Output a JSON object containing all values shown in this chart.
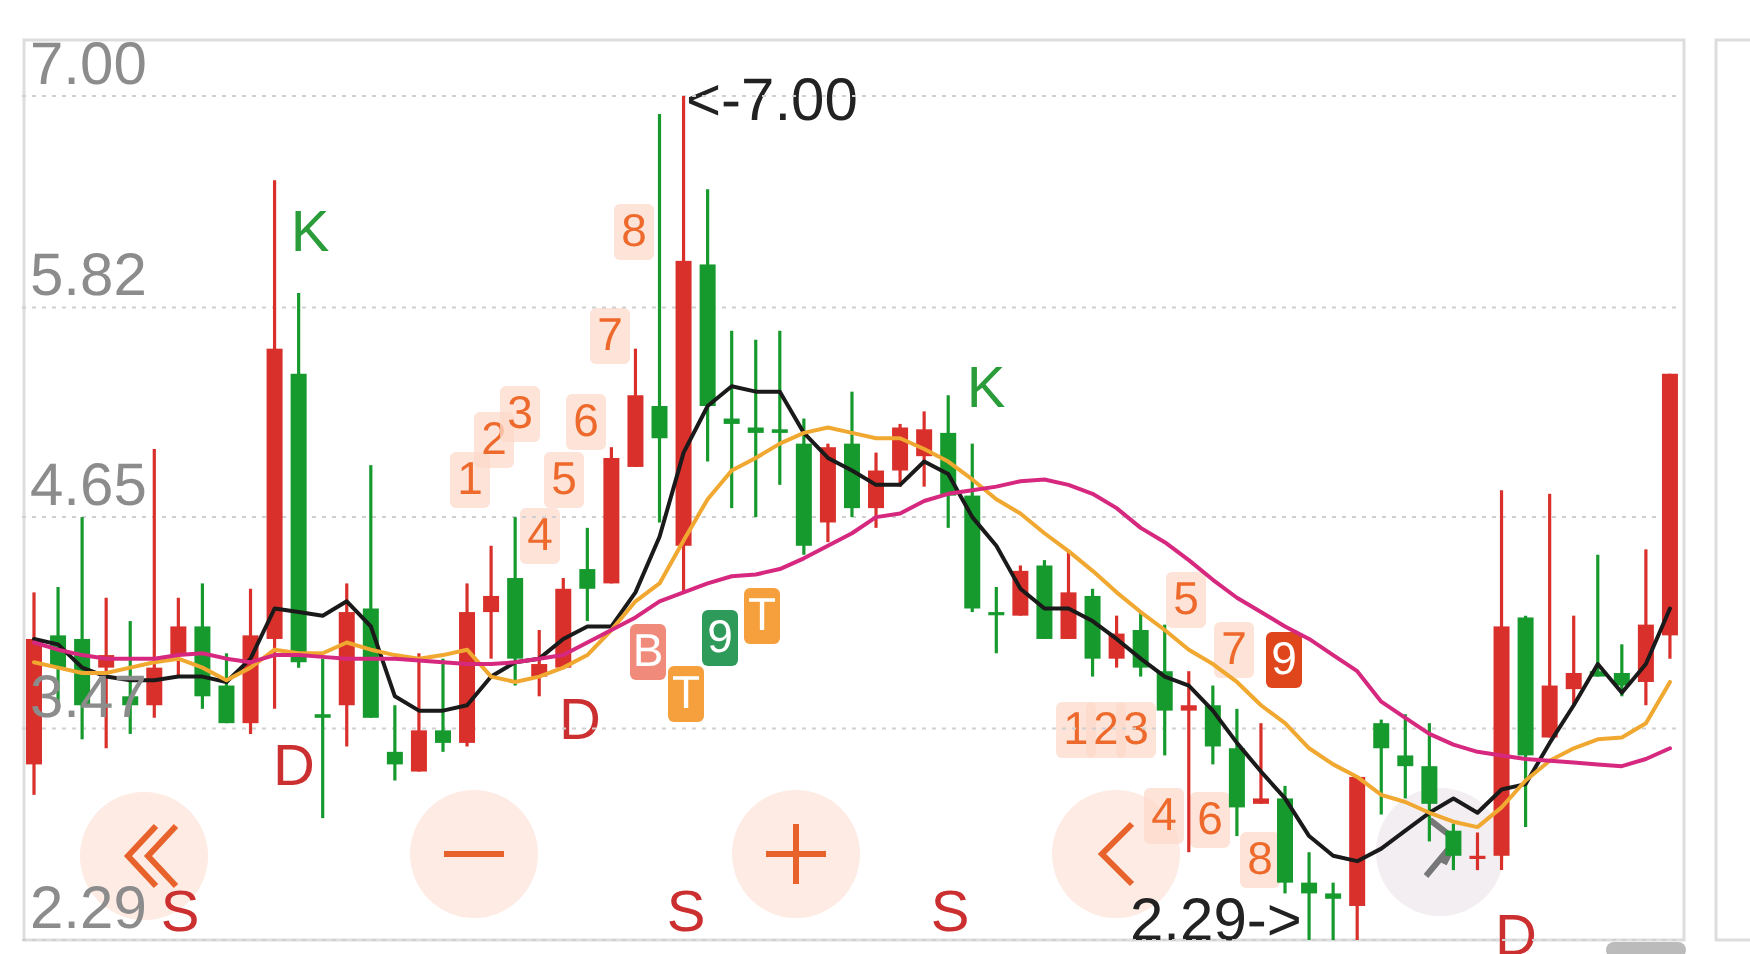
{
  "chart_data": {
    "type": "candlestick",
    "categories": [
      null,
      null,
      null,
      null,
      null,
      null,
      null,
      null,
      null,
      null,
      null,
      null,
      null,
      null,
      null,
      null,
      null,
      null,
      null,
      null,
      null,
      null,
      null,
      null,
      null,
      null,
      null,
      null,
      null,
      null,
      null,
      null,
      null,
      null,
      null,
      null,
      null,
      null,
      null,
      null,
      null,
      null,
      null,
      null,
      null,
      null,
      null,
      null,
      null,
      null,
      null,
      null,
      null,
      null,
      null,
      null,
      null,
      null,
      null,
      null,
      null,
      null,
      null,
      null,
      null,
      null,
      null,
      null,
      null
    ],
    "ohlc": [
      [
        3.27,
        4.23,
        3.1,
        3.97
      ],
      [
        3.99,
        4.26,
        3.6,
        3.81
      ],
      [
        3.97,
        4.65,
        3.41,
        3.6
      ],
      [
        3.81,
        4.2,
        3.36,
        3.88
      ],
      [
        3.65,
        4.07,
        3.44,
        3.6
      ],
      [
        3.6,
        5.03,
        3.53,
        3.81
      ],
      [
        3.88,
        4.2,
        3.76,
        4.04
      ],
      [
        4.04,
        4.28,
        3.58,
        3.65
      ],
      [
        3.71,
        3.89,
        3.5,
        3.5
      ],
      [
        3.5,
        4.25,
        3.44,
        3.99
      ],
      [
        3.97,
        6.53,
        3.58,
        5.59
      ],
      [
        5.45,
        5.9,
        3.81,
        3.84
      ],
      [
        3.55,
        3.86,
        2.97,
        3.53
      ],
      [
        3.6,
        4.28,
        3.37,
        4.12
      ],
      [
        4.14,
        4.94,
        3.53,
        3.53
      ],
      [
        3.34,
        3.6,
        3.18,
        3.27
      ],
      [
        3.23,
        3.89,
        3.23,
        3.46
      ],
      [
        3.46,
        3.86,
        3.34,
        3.39
      ],
      [
        3.39,
        4.28,
        3.37,
        4.12
      ],
      [
        4.12,
        4.49,
        3.86,
        4.21
      ],
      [
        4.31,
        4.65,
        3.71,
        3.86
      ],
      [
        3.76,
        4.02,
        3.65,
        3.83
      ],
      [
        3.81,
        4.31,
        3.81,
        4.25
      ],
      [
        4.36,
        4.59,
        4.07,
        4.25
      ],
      [
        4.28,
        5.04,
        4.28,
        4.98
      ],
      [
        4.93,
        5.59,
        4.93,
        5.33
      ],
      [
        5.27,
        6.9,
        4.62,
        5.09
      ],
      [
        4.49,
        7.0,
        4.23,
        6.08
      ],
      [
        6.06,
        6.48,
        4.96,
        5.27
      ],
      [
        5.2,
        5.69,
        4.7,
        5.17
      ],
      [
        5.15,
        5.64,
        4.65,
        5.12
      ],
      [
        5.14,
        5.69,
        4.83,
        5.12
      ],
      [
        5.06,
        5.2,
        4.44,
        4.49
      ],
      [
        4.62,
        5.06,
        4.51,
        5.04
      ],
      [
        5.06,
        5.35,
        4.65,
        4.7
      ],
      [
        4.7,
        5.01,
        4.59,
        4.91
      ],
      [
        4.91,
        5.17,
        4.82,
        5.15
      ],
      [
        4.99,
        5.24,
        4.82,
        5.14
      ],
      [
        5.12,
        5.33,
        4.59,
        4.77
      ],
      [
        4.77,
        5.06,
        4.12,
        4.14
      ],
      [
        4.12,
        4.26,
        3.89,
        4.11
      ],
      [
        4.1,
        4.38,
        4.1,
        4.35
      ],
      [
        4.38,
        4.41,
        3.97,
        3.97
      ],
      [
        3.97,
        4.46,
        3.97,
        4.23
      ],
      [
        4.21,
        4.25,
        3.76,
        3.86
      ],
      [
        3.86,
        4.1,
        3.81,
        4.0
      ],
      [
        4.02,
        4.12,
        3.76,
        3.81
      ],
      [
        3.79,
        4.05,
        3.32,
        3.57
      ],
      [
        3.57,
        3.79,
        2.78,
        3.6
      ],
      [
        3.6,
        3.71,
        3.27,
        3.37
      ],
      [
        3.36,
        3.58,
        2.87,
        3.03
      ],
      [
        3.05,
        3.5,
        3.05,
        3.08
      ],
      [
        3.08,
        3.15,
        2.55,
        2.61
      ],
      [
        2.61,
        2.78,
        2.29,
        2.55
      ],
      [
        2.55,
        2.61,
        2.29,
        2.52
      ],
      [
        2.48,
        3.2,
        2.29,
        3.2
      ],
      [
        3.5,
        3.52,
        2.99,
        3.36
      ],
      [
        3.32,
        3.55,
        3.08,
        3.26
      ],
      [
        3.26,
        3.5,
        2.84,
        3.05
      ],
      [
        2.9,
        2.94,
        2.68,
        2.76
      ],
      [
        2.75,
        2.89,
        2.68,
        2.76
      ],
      [
        2.76,
        4.8,
        2.68,
        4.04
      ],
      [
        4.09,
        4.1,
        2.92,
        3.32
      ],
      [
        3.42,
        4.78,
        3.42,
        3.71
      ],
      [
        3.69,
        4.1,
        3.6,
        3.78
      ],
      [
        3.79,
        4.44,
        3.76,
        3.76
      ],
      [
        3.78,
        3.94,
        3.65,
        3.71
      ],
      [
        3.73,
        4.47,
        3.6,
        4.05
      ],
      [
        3.99,
        5.45,
        3.86,
        5.45
      ]
    ],
    "colors": [
      "#d9302b",
      "#169a2e",
      "#169a2e",
      "#d9302b",
      "#169a2e",
      "#d9302b",
      "#d9302b",
      "#169a2e",
      "#169a2e",
      "#d9302b",
      "#d9302b",
      "#169a2e",
      "#169a2e",
      "#d9302b",
      "#169a2e",
      "#169a2e",
      "#d9302b",
      "#169a2e",
      "#d9302b",
      "#d9302b",
      "#169a2e",
      "#d9302b",
      "#d9302b",
      "#169a2e",
      "#d9302b",
      "#d9302b",
      "#169a2e",
      "#d9302b",
      "#169a2e",
      "#169a2e",
      "#169a2e",
      "#169a2e",
      "#169a2e",
      "#d9302b",
      "#169a2e",
      "#d9302b",
      "#d9302b",
      "#d9302b",
      "#169a2e",
      "#169a2e",
      "#169a2e",
      "#d9302b",
      "#169a2e",
      "#d9302b",
      "#169a2e",
      "#d9302b",
      "#169a2e",
      "#169a2e",
      "#d9302b",
      "#169a2e",
      "#169a2e",
      "#d9302b",
      "#169a2e",
      "#169a2e",
      "#169a2e",
      "#d9302b",
      "#169a2e",
      "#169a2e",
      "#169a2e",
      "#169a2e",
      "#d9302b",
      "#d9302b",
      "#169a2e",
      "#d9302b",
      "#d9302b",
      "#169a2e",
      "#169a2e",
      "#d9302b",
      "#d9302b"
    ],
    "series": [
      {
        "type": "line",
        "color": "#1a1a1a",
        "values": [
          3.97,
          3.94,
          3.81,
          3.76,
          3.74,
          3.74,
          3.76,
          3.76,
          3.73,
          3.86,
          4.14,
          4.12,
          4.1,
          4.18,
          4.04,
          3.65,
          3.57,
          3.57,
          3.6,
          3.76,
          3.84,
          3.86,
          3.97,
          4.04,
          4.04,
          4.23,
          4.54,
          5.01,
          5.27,
          5.38,
          5.35,
          5.35,
          5.12,
          4.98,
          4.91,
          4.83,
          4.83,
          4.96,
          4.89,
          4.65,
          4.49,
          4.25,
          4.14,
          4.14,
          4.07,
          3.97,
          3.86,
          3.76,
          3.71,
          3.57,
          3.39,
          3.23,
          3.08,
          2.87,
          2.76,
          2.73,
          2.8,
          2.9,
          3.0,
          3.08,
          3.0,
          3.13,
          3.16,
          3.39,
          3.6,
          3.83,
          3.67,
          3.83,
          4.14
        ]
      },
      {
        "type": "line",
        "color": "#f0a830",
        "values": [
          3.84,
          3.81,
          3.78,
          3.78,
          3.81,
          3.84,
          3.86,
          3.81,
          3.74,
          3.81,
          3.91,
          3.89,
          3.89,
          3.95,
          3.91,
          3.88,
          3.86,
          3.88,
          3.91,
          3.76,
          3.73,
          3.76,
          3.81,
          3.88,
          4.02,
          4.18,
          4.28,
          4.52,
          4.75,
          4.91,
          4.98,
          5.06,
          5.12,
          5.15,
          5.12,
          5.09,
          5.09,
          5.03,
          4.96,
          4.86,
          4.75,
          4.67,
          4.56,
          4.46,
          4.35,
          4.23,
          4.12,
          4.02,
          3.91,
          3.83,
          3.73,
          3.6,
          3.5,
          3.36,
          3.27,
          3.2,
          3.1,
          3.06,
          3.0,
          2.95,
          2.92,
          3.03,
          3.18,
          3.29,
          3.36,
          3.41,
          3.42,
          3.5,
          3.73
        ]
      },
      {
        "type": "line",
        "color": "#d6287f",
        "values": [
          3.95,
          3.91,
          3.88,
          3.86,
          3.86,
          3.86,
          3.88,
          3.89,
          3.86,
          3.84,
          3.88,
          3.88,
          3.87,
          3.86,
          3.86,
          3.86,
          3.85,
          3.84,
          3.83,
          3.83,
          3.84,
          3.86,
          3.88,
          3.95,
          4.02,
          4.09,
          4.18,
          4.23,
          4.28,
          4.32,
          4.33,
          4.36,
          4.42,
          4.49,
          4.56,
          4.65,
          4.67,
          4.74,
          4.78,
          4.8,
          4.82,
          4.85,
          4.86,
          4.83,
          4.78,
          4.7,
          4.59,
          4.51,
          4.41,
          4.3,
          4.2,
          4.12,
          4.04,
          3.97,
          3.88,
          3.79,
          3.62,
          3.53,
          3.44,
          3.38,
          3.34,
          3.32,
          3.3,
          3.29,
          3.28,
          3.27,
          3.26,
          3.3,
          3.36
        ]
      }
    ],
    "ylim": [
      2.29,
      7.0
    ],
    "yticks": [
      {
        "value": 7.0,
        "label": "7.00"
      },
      5.82,
      4.65,
      3.47,
      2.29
    ],
    "grid": "y",
    "annotations": [
      "<-7.00",
      "2.29->",
      "K",
      "K",
      "D",
      "D",
      "D",
      "S",
      "S",
      "S",
      "1",
      "2",
      "3",
      "4",
      "5",
      "6",
      "7",
      "8",
      "9",
      "B",
      "T",
      "T",
      "1",
      "2",
      "3",
      "4",
      "5",
      "6",
      "7",
      "8",
      "9"
    ]
  }
}
